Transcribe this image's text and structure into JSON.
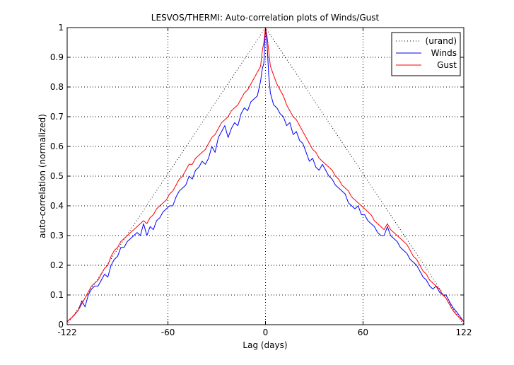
{
  "chart_data": {
    "type": "line",
    "title": "LESVOS/THERMI: Auto-correlation plots of Winds/Gust",
    "xlabel": "Lag (days)",
    "ylabel": "auto-correlation (normalized)",
    "xlim": [
      -122,
      122
    ],
    "ylim": [
      0,
      1
    ],
    "xticks": [
      -122,
      -60,
      0,
      60,
      122
    ],
    "xtick_labels": [
      "-122",
      "-60",
      "0",
      "60",
      "122"
    ],
    "yticks": [
      0,
      0.1,
      0.2,
      0.3,
      0.4,
      0.5,
      0.6,
      0.7,
      0.8,
      0.9,
      1
    ],
    "ytick_labels": [
      "0",
      "0.1",
      "0.2",
      "0.3",
      "0.4",
      "0.5",
      "0.6",
      "0.7",
      "0.8",
      "0.9",
      "1"
    ],
    "grid": true,
    "legend_position": "top-right",
    "series": [
      {
        "name": "(urand)",
        "color": "#000000",
        "style": "dotted",
        "x": [
          -122,
          0,
          122
        ],
        "y": [
          0,
          1,
          0
        ]
      },
      {
        "name": "Winds",
        "color": "#0000ff",
        "style": "solid",
        "x": [
          -122,
          -118,
          -115,
          -113,
          -111,
          -109,
          -107,
          -105,
          -103,
          -101,
          -99,
          -97,
          -95,
          -93,
          -91,
          -89,
          -87,
          -85,
          -83,
          -81,
          -79,
          -77,
          -75,
          -73,
          -71,
          -69,
          -67,
          -65,
          -63,
          -61,
          -59,
          -57,
          -55,
          -53,
          -51,
          -49,
          -47,
          -45,
          -43,
          -41,
          -39,
          -37,
          -35,
          -33,
          -31,
          -29,
          -27,
          -25,
          -23,
          -21,
          -19,
          -17,
          -15,
          -13,
          -11,
          -9,
          -7,
          -5,
          -3,
          -2,
          -1,
          0,
          1,
          2,
          3,
          5,
          7,
          9,
          11,
          13,
          15,
          17,
          19,
          21,
          23,
          25,
          27,
          29,
          31,
          33,
          35,
          37,
          39,
          41,
          43,
          45,
          47,
          49,
          51,
          53,
          55,
          57,
          59,
          61,
          63,
          65,
          67,
          69,
          71,
          73,
          75,
          77,
          79,
          81,
          83,
          85,
          87,
          89,
          91,
          93,
          95,
          97,
          99,
          101,
          103,
          105,
          107,
          109,
          111,
          113,
          115,
          118,
          122
        ],
        "y": [
          0.01,
          0.03,
          0.05,
          0.08,
          0.06,
          0.1,
          0.12,
          0.13,
          0.13,
          0.15,
          0.17,
          0.16,
          0.2,
          0.22,
          0.23,
          0.26,
          0.26,
          0.28,
          0.29,
          0.3,
          0.31,
          0.3,
          0.34,
          0.3,
          0.33,
          0.32,
          0.35,
          0.36,
          0.38,
          0.39,
          0.4,
          0.4,
          0.43,
          0.45,
          0.46,
          0.47,
          0.5,
          0.49,
          0.52,
          0.53,
          0.55,
          0.54,
          0.56,
          0.6,
          0.58,
          0.63,
          0.65,
          0.67,
          0.63,
          0.66,
          0.68,
          0.67,
          0.71,
          0.73,
          0.72,
          0.75,
          0.76,
          0.77,
          0.82,
          0.86,
          0.88,
          1.0,
          0.94,
          0.84,
          0.78,
          0.74,
          0.73,
          0.71,
          0.7,
          0.67,
          0.68,
          0.64,
          0.65,
          0.62,
          0.61,
          0.58,
          0.55,
          0.56,
          0.53,
          0.52,
          0.54,
          0.52,
          0.5,
          0.49,
          0.47,
          0.46,
          0.45,
          0.44,
          0.41,
          0.4,
          0.39,
          0.4,
          0.37,
          0.37,
          0.35,
          0.34,
          0.33,
          0.31,
          0.3,
          0.3,
          0.33,
          0.3,
          0.29,
          0.28,
          0.26,
          0.25,
          0.24,
          0.22,
          0.21,
          0.2,
          0.18,
          0.16,
          0.15,
          0.13,
          0.12,
          0.13,
          0.11,
          0.1,
          0.1,
          0.08,
          0.06,
          0.04,
          0.01
        ]
      },
      {
        "name": "Gust",
        "color": "#ff0000",
        "style": "solid",
        "x": [
          -122,
          -118,
          -115,
          -113,
          -111,
          -109,
          -107,
          -105,
          -103,
          -101,
          -99,
          -97,
          -95,
          -93,
          -91,
          -89,
          -87,
          -85,
          -83,
          -81,
          -79,
          -77,
          -75,
          -73,
          -71,
          -69,
          -67,
          -65,
          -63,
          -61,
          -59,
          -57,
          -55,
          -53,
          -51,
          -49,
          -47,
          -45,
          -43,
          -41,
          -39,
          -37,
          -35,
          -33,
          -31,
          -29,
          -27,
          -25,
          -23,
          -21,
          -19,
          -17,
          -15,
          -13,
          -11,
          -9,
          -7,
          -5,
          -3,
          -2,
          -1,
          0,
          1,
          2,
          3,
          5,
          7,
          9,
          11,
          13,
          15,
          17,
          19,
          21,
          23,
          25,
          27,
          29,
          31,
          33,
          35,
          37,
          39,
          41,
          43,
          45,
          47,
          49,
          51,
          53,
          55,
          57,
          59,
          61,
          63,
          65,
          67,
          69,
          71,
          73,
          75,
          77,
          79,
          81,
          83,
          85,
          87,
          89,
          91,
          93,
          95,
          97,
          99,
          101,
          103,
          105,
          107,
          109,
          111,
          113,
          115,
          118,
          122
        ],
        "y": [
          0.01,
          0.03,
          0.05,
          0.07,
          0.09,
          0.11,
          0.13,
          0.14,
          0.15,
          0.17,
          0.19,
          0.2,
          0.23,
          0.25,
          0.26,
          0.28,
          0.29,
          0.3,
          0.31,
          0.32,
          0.33,
          0.34,
          0.35,
          0.34,
          0.36,
          0.37,
          0.39,
          0.4,
          0.41,
          0.42,
          0.44,
          0.45,
          0.47,
          0.49,
          0.5,
          0.52,
          0.54,
          0.54,
          0.56,
          0.57,
          0.58,
          0.59,
          0.61,
          0.63,
          0.64,
          0.66,
          0.68,
          0.69,
          0.7,
          0.72,
          0.73,
          0.74,
          0.76,
          0.78,
          0.79,
          0.81,
          0.83,
          0.85,
          0.87,
          0.92,
          0.95,
          1.0,
          0.97,
          0.92,
          0.87,
          0.84,
          0.81,
          0.79,
          0.77,
          0.74,
          0.72,
          0.7,
          0.69,
          0.67,
          0.65,
          0.63,
          0.61,
          0.59,
          0.58,
          0.56,
          0.55,
          0.54,
          0.53,
          0.52,
          0.5,
          0.49,
          0.47,
          0.46,
          0.45,
          0.43,
          0.42,
          0.41,
          0.4,
          0.39,
          0.38,
          0.37,
          0.35,
          0.34,
          0.33,
          0.32,
          0.34,
          0.32,
          0.31,
          0.3,
          0.29,
          0.28,
          0.27,
          0.25,
          0.23,
          0.22,
          0.2,
          0.18,
          0.17,
          0.15,
          0.14,
          0.13,
          0.12,
          0.1,
          0.09,
          0.07,
          0.05,
          0.03,
          0.01
        ]
      }
    ]
  }
}
